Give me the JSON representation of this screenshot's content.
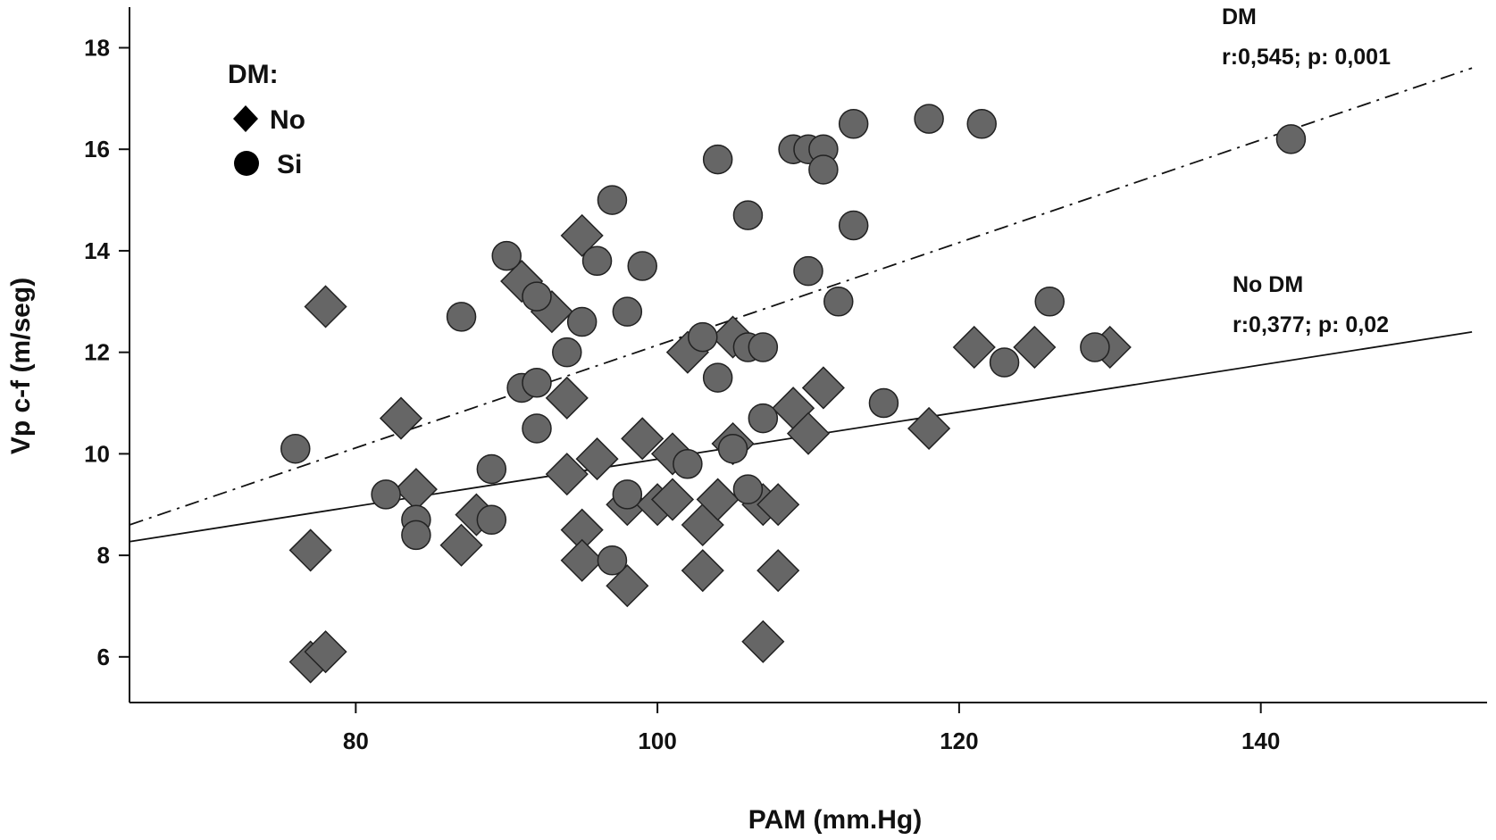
{
  "chart_data": {
    "type": "scatter",
    "xlabel": "PAM (mm.Hg)",
    "ylabel": "Vp c-f (m/seg)",
    "xlim": [
      65,
      155
    ],
    "ylim": [
      5.1,
      18.8
    ],
    "xticks": [
      80,
      100,
      120,
      140
    ],
    "yticks": [
      6,
      8,
      10,
      12,
      14,
      16,
      18
    ],
    "grid": false,
    "legend": {
      "title": "DM:",
      "placement": "top-left",
      "entries": [
        {
          "label": "No",
          "marker": "diamond"
        },
        {
          "label": "Si",
          "marker": "circle"
        }
      ]
    },
    "marker_color": "#666666",
    "series": [
      {
        "name": "No",
        "marker": "diamond",
        "points": [
          [
            77,
            5.9
          ],
          [
            78,
            6.1
          ],
          [
            77,
            8.1
          ],
          [
            78,
            12.9
          ],
          [
            83,
            10.7
          ],
          [
            84,
            9.3
          ],
          [
            87,
            8.2
          ],
          [
            88,
            8.8
          ],
          [
            91,
            13.4
          ],
          [
            93,
            12.8
          ],
          [
            94,
            11.1
          ],
          [
            94,
            9.6
          ],
          [
            95,
            14.3
          ],
          [
            95,
            8.5
          ],
          [
            95,
            7.9
          ],
          [
            96,
            9.9
          ],
          [
            98,
            9.0
          ],
          [
            98,
            7.4
          ],
          [
            99,
            10.3
          ],
          [
            100,
            9.0
          ],
          [
            101,
            10.0
          ],
          [
            101,
            9.1
          ],
          [
            102,
            12.0
          ],
          [
            103,
            8.6
          ],
          [
            103,
            7.7
          ],
          [
            104,
            9.1
          ],
          [
            105,
            12.3
          ],
          [
            105,
            10.2
          ],
          [
            107,
            6.3
          ],
          [
            107,
            9.0
          ],
          [
            108,
            9.0
          ],
          [
            108,
            7.7
          ],
          [
            109,
            10.9
          ],
          [
            110,
            10.4
          ],
          [
            111,
            11.3
          ],
          [
            118,
            10.5
          ],
          [
            121,
            12.1
          ],
          [
            125,
            12.1
          ],
          [
            130,
            12.1
          ]
        ]
      },
      {
        "name": "Si",
        "marker": "circle",
        "points": [
          [
            76,
            10.1
          ],
          [
            82,
            9.2
          ],
          [
            84,
            8.7
          ],
          [
            84,
            8.4
          ],
          [
            87,
            12.7
          ],
          [
            89,
            9.7
          ],
          [
            89,
            8.7
          ],
          [
            90,
            13.9
          ],
          [
            91,
            11.3
          ],
          [
            92,
            13.1
          ],
          [
            92,
            11.4
          ],
          [
            92,
            10.5
          ],
          [
            94,
            12.0
          ],
          [
            95,
            12.6
          ],
          [
            96,
            13.8
          ],
          [
            97,
            15.0
          ],
          [
            97,
            7.9
          ],
          [
            98,
            12.8
          ],
          [
            98,
            9.2
          ],
          [
            99,
            13.7
          ],
          [
            102,
            9.8
          ],
          [
            103,
            12.3
          ],
          [
            104,
            15.8
          ],
          [
            104,
            11.5
          ],
          [
            105,
            10.1
          ],
          [
            106,
            14.7
          ],
          [
            106,
            12.1
          ],
          [
            106,
            9.3
          ],
          [
            107,
            12.1
          ],
          [
            107,
            10.7
          ],
          [
            109,
            16.0
          ],
          [
            110,
            16.0
          ],
          [
            110,
            13.6
          ],
          [
            111,
            16.0
          ],
          [
            111,
            15.6
          ],
          [
            112,
            13.0
          ],
          [
            113,
            16.5
          ],
          [
            113,
            14.5
          ],
          [
            115,
            11.0
          ],
          [
            118,
            16.6
          ],
          [
            121.5,
            16.5
          ],
          [
            123,
            11.8
          ],
          [
            126,
            13.0
          ],
          [
            129,
            12.1
          ],
          [
            142,
            16.2
          ]
        ]
      }
    ],
    "fit_lines": [
      {
        "name": "DM",
        "style": "dash-dot",
        "from": [
          65,
          8.6
        ],
        "to": [
          154,
          17.6
        ]
      },
      {
        "name": "No DM",
        "style": "solid",
        "from": [
          65,
          8.27
        ],
        "to": [
          154,
          12.4
        ]
      }
    ],
    "annotations": [
      {
        "line1": "DM",
        "line2": "r:0,545; p: 0,001"
      },
      {
        "line1": "No DM",
        "line2": "r:0,377; p: 0,02"
      }
    ]
  }
}
